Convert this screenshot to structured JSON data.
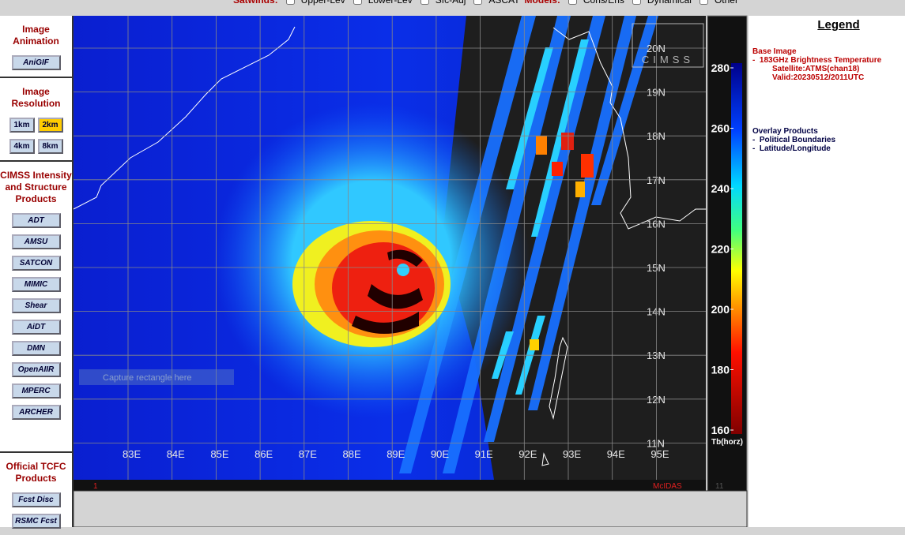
{
  "top_bar": {
    "satwinds_label": "Satwinds:",
    "satwinds": [
      "Upper-Lev",
      "Lower-Lev",
      "Sfc-Adj",
      "ASCAT"
    ],
    "models_label": "Models:",
    "models": [
      "Cons/Ens",
      "Dynamical",
      "Other"
    ]
  },
  "sidebar": [
    {
      "title": "Image Animation",
      "buttons": [
        "AniGIF"
      ]
    },
    {
      "title": "Image Resolution",
      "buttons": [
        "1km",
        "2km",
        "4km",
        "8km"
      ]
    },
    {
      "title": "CIMSS Intensity and Structure Products",
      "buttons": [
        "ADT",
        "AMSU",
        "SATCON",
        "MIMIC",
        "Shear",
        "AiDT",
        "DMN",
        "OpenAIIR",
        "MPERC",
        "ARCHER"
      ]
    },
    {
      "title": "Official TCFC Products",
      "buttons": [
        "Fcst Disc",
        "RSMC Fcst"
      ]
    }
  ],
  "image": {
    "lat_labels": [
      "20N",
      "19N",
      "18N",
      "17N",
      "16N",
      "15N",
      "14N",
      "13N",
      "12N",
      "11N"
    ],
    "lon_labels": [
      "83E",
      "84E",
      "85E",
      "86E",
      "87E",
      "88E",
      "89E",
      "90E",
      "91E",
      "92E",
      "93E",
      "94E",
      "95E"
    ],
    "logo": "CIMSS",
    "capture_hint": "Capture rectangle here",
    "frame_number": "1",
    "frame_total": "11",
    "software": "McIDAS"
  },
  "colorbar": {
    "ticks": [
      280,
      260,
      240,
      220,
      200,
      180,
      160
    ],
    "label": "Tb(horz)"
  },
  "legend": {
    "title": "Legend",
    "base_heading": "Base Image",
    "base_product": "-  183GHz Brightness Temperature",
    "satellite": "Satellite:ATMS(chan18)",
    "valid": "Valid:20230512/2011UTC",
    "overlay_heading": "Overlay Products",
    "overlays": [
      "-  Political Boundaries",
      "-  Latitude/Longitude"
    ]
  }
}
